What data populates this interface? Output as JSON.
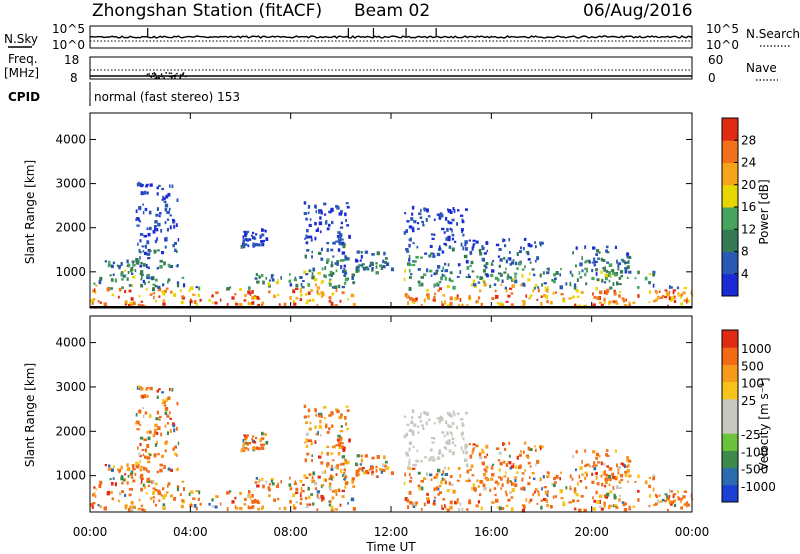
{
  "header": {
    "title": "Zhongshan Station (fitACF)",
    "beam": "Beam 02",
    "date": "06/Aug/2016"
  },
  "panels": {
    "nsky": {
      "label": "N.Sky",
      "left_ticks": [
        "10^5",
        "10^0"
      ],
      "right_ticks": [
        "10^5",
        "10^0"
      ],
      "right_label": "N.Search",
      "right_label_style": "dotted"
    },
    "freq": {
      "label_line1": "Freq.",
      "label_line2": "[MHz]",
      "left_ticks": [
        "18",
        "8"
      ],
      "right_ticks": [
        "60",
        "0"
      ],
      "right_label": "Nave",
      "right_label_style": "dotted"
    },
    "cpid": {
      "label": "CPID",
      "text": "normal (fast stereo) 153"
    }
  },
  "chart_data": [
    {
      "type": "heatmap",
      "name": "power",
      "ylabel": "Slant Range [km]",
      "yticks": [
        1000,
        2000,
        3000,
        4000
      ],
      "ylim": [
        180,
        4600
      ],
      "xlim_hours": [
        0,
        24
      ],
      "colorbar": {
        "label": "Power [dB]",
        "ticks": [
          4,
          8,
          12,
          16,
          20,
          24,
          28
        ],
        "range": [
          0,
          32
        ],
        "colors": [
          "#1a2bd6",
          "#2a58b4",
          "#357a52",
          "#48a35c",
          "#e8d600",
          "#f7a41a",
          "#f2711a",
          "#e02a14"
        ]
      }
    },
    {
      "type": "heatmap",
      "name": "velocity",
      "ylabel": "Slant Range [km]",
      "yticks": [
        1000,
        2000,
        3000,
        4000
      ],
      "ylim": [
        180,
        4600
      ],
      "xlim_hours": [
        0,
        24
      ],
      "colorbar": {
        "label": "Velocity [m s⁻¹]",
        "ticks": [
          "1000",
          "500",
          "100",
          "25",
          "-25",
          "-100",
          "-500",
          "-1000"
        ],
        "colors": [
          "#1a3fd2",
          "#2d6bb0",
          "#3c8a4c",
          "#6cc23a",
          "#c8c8c0",
          "#c8c8c0",
          "#f7c31a",
          "#f79a1a",
          "#f26a14",
          "#e02a14"
        ]
      }
    }
  ],
  "xaxis": {
    "label": "Time UT",
    "ticks": [
      "00:00",
      "04:00",
      "08:00",
      "12:00",
      "16:00",
      "20:00",
      "00:00"
    ]
  },
  "scatter_bands": [
    {
      "t0": 0.0,
      "t1": 3.8,
      "r0": 250,
      "r1": 900
    },
    {
      "t0": 0.5,
      "t1": 2.5,
      "r0": 900,
      "r1": 1300
    },
    {
      "t0": 1.8,
      "t1": 3.5,
      "r0": 1100,
      "r1": 3100
    },
    {
      "t0": 3.8,
      "t1": 6.5,
      "r0": 250,
      "r1": 700
    },
    {
      "t0": 6.0,
      "t1": 7.0,
      "r0": 1600,
      "r1": 2000
    },
    {
      "t0": 6.5,
      "t1": 10.5,
      "r0": 250,
      "r1": 1000
    },
    {
      "t0": 8.5,
      "t1": 10.3,
      "r0": 700,
      "r1": 2600
    },
    {
      "t0": 10.5,
      "t1": 12.0,
      "r0": 1000,
      "r1": 1500
    },
    {
      "t0": 12.5,
      "t1": 15.0,
      "r0": 250,
      "r1": 2500
    },
    {
      "t0": 15.0,
      "t1": 18.0,
      "r0": 250,
      "r1": 1800
    },
    {
      "t0": 18.0,
      "t1": 22.5,
      "r0": 250,
      "r1": 1100
    },
    {
      "t0": 19.0,
      "t1": 21.5,
      "r0": 1100,
      "r1": 1600
    },
    {
      "t0": 22.5,
      "t1": 24.0,
      "r0": 250,
      "r1": 700
    }
  ]
}
